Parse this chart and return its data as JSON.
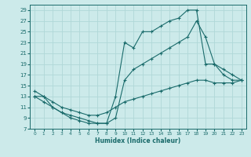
{
  "xlabel": "Humidex (Indice chaleur)",
  "bg_color": "#cceaea",
  "grid_color": "#b0d8d8",
  "line_color": "#1a6b6b",
  "xlim": [
    -0.5,
    23.5
  ],
  "ylim": [
    7,
    30
  ],
  "xticks": [
    0,
    1,
    2,
    3,
    4,
    5,
    6,
    7,
    8,
    9,
    10,
    11,
    12,
    13,
    14,
    15,
    16,
    17,
    18,
    19,
    20,
    21,
    22,
    23
  ],
  "yticks": [
    7,
    9,
    11,
    13,
    15,
    17,
    19,
    21,
    23,
    25,
    27,
    29
  ],
  "series": [
    {
      "x": [
        0,
        1,
        2,
        3,
        4,
        5,
        6,
        7,
        8,
        9,
        10,
        11,
        12,
        13,
        14,
        15,
        16,
        17,
        18,
        19,
        20,
        21,
        22,
        23
      ],
      "y": [
        14,
        13,
        11,
        10,
        9,
        8.5,
        8,
        8,
        8,
        13,
        23,
        22,
        25,
        25,
        26,
        27,
        27.5,
        29,
        29,
        19,
        19,
        18,
        17,
        16
      ]
    },
    {
      "x": [
        0,
        1,
        2,
        3,
        4,
        5,
        6,
        7,
        8,
        9,
        10,
        11,
        12,
        13,
        14,
        15,
        16,
        17,
        18,
        19,
        20,
        21,
        22,
        23
      ],
      "y": [
        13,
        12,
        11,
        10,
        9.5,
        9,
        8.5,
        8,
        8,
        9,
        16,
        18,
        19,
        20,
        21,
        22,
        23,
        24,
        27,
        24,
        19,
        17,
        16,
        16
      ]
    },
    {
      "x": [
        0,
        1,
        2,
        3,
        4,
        5,
        6,
        7,
        8,
        9,
        10,
        11,
        12,
        13,
        14,
        15,
        16,
        17,
        18,
        19,
        20,
        21,
        22,
        23
      ],
      "y": [
        13,
        13,
        12,
        11,
        10.5,
        10,
        9.5,
        9.5,
        10,
        11,
        12,
        12.5,
        13,
        13.5,
        14,
        14.5,
        15,
        15.5,
        16,
        16,
        15.5,
        15.5,
        15.5,
        16
      ]
    }
  ]
}
